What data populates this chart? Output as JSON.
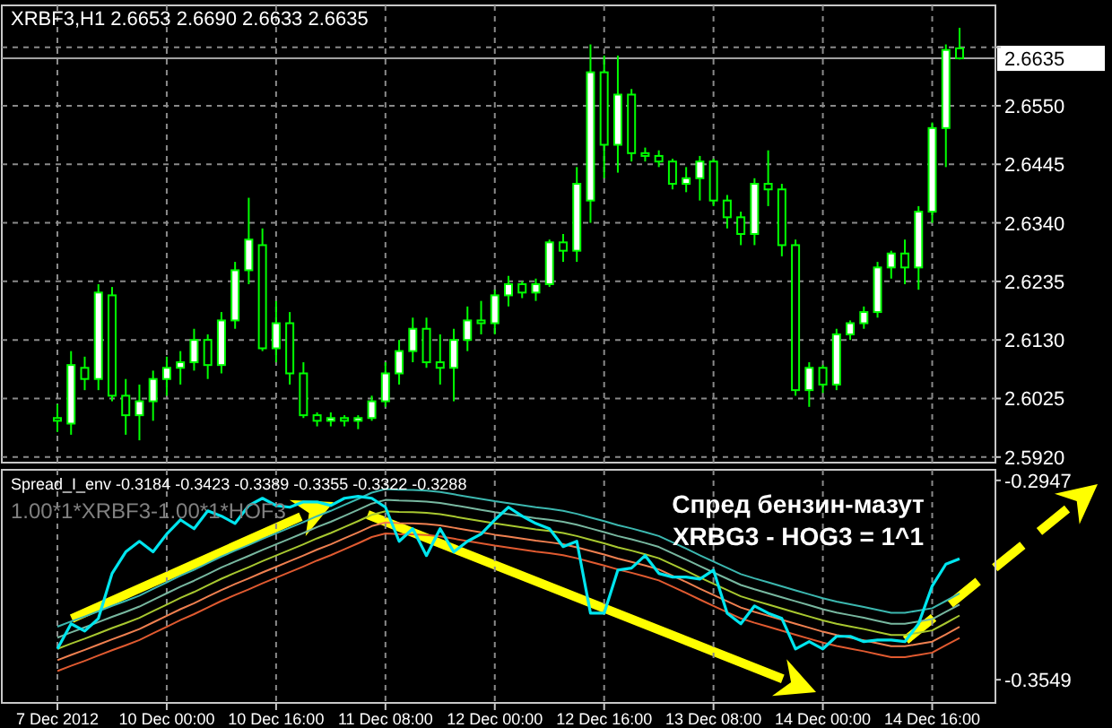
{
  "chart_data": [
    {
      "type": "candlestick",
      "title": "XRBF3,H1 2.6653 2.6690 2.6633 2.6635",
      "color": "#00ff00",
      "categories": [
        null,
        null,
        null,
        null,
        null,
        null,
        null,
        null,
        null,
        null,
        null,
        null,
        null,
        null,
        null,
        null,
        null,
        null,
        null,
        null,
        null,
        null,
        null,
        null,
        null,
        null,
        null,
        null,
        null,
        null,
        null,
        null,
        null,
        null,
        null,
        null,
        null,
        null,
        null,
        null,
        null,
        null,
        null,
        null,
        null,
        null,
        null,
        null,
        null,
        null,
        null,
        null,
        null,
        null,
        null,
        null,
        null,
        null,
        null,
        null,
        null,
        null,
        null,
        null,
        null,
        null,
        null
      ],
      "ohlc": [
        [
          2.599,
          2.6015,
          2.5965,
          2.5985
        ],
        [
          2.598,
          2.611,
          2.596,
          2.6085
        ],
        [
          2.608,
          2.61,
          2.604,
          2.606
        ],
        [
          2.606,
          2.623,
          2.604,
          2.6215
        ],
        [
          2.621,
          2.6225,
          2.602,
          2.603
        ],
        [
          2.603,
          2.606,
          2.596,
          2.5995
        ],
        [
          2.5995,
          2.605,
          2.595,
          2.602
        ],
        [
          2.602,
          2.6075,
          2.5985,
          2.606
        ],
        [
          2.606,
          2.61,
          2.603,
          2.608
        ],
        [
          2.608,
          2.611,
          2.605,
          2.609
        ],
        [
          2.609,
          2.615,
          2.6075,
          2.613
        ],
        [
          2.613,
          2.614,
          2.606,
          2.6085
        ],
        [
          2.6085,
          2.618,
          2.607,
          2.6165
        ],
        [
          2.6165,
          2.627,
          2.615,
          2.6255
        ],
        [
          2.6255,
          2.6385,
          2.623,
          2.631
        ],
        [
          2.63,
          2.633,
          2.611,
          2.6115
        ],
        [
          2.6115,
          2.62,
          2.609,
          2.616
        ],
        [
          2.616,
          2.618,
          2.605,
          2.607
        ],
        [
          2.607,
          2.609,
          2.599,
          2.5995
        ],
        [
          2.5995,
          2.6,
          2.5975,
          2.5985
        ],
        [
          2.5985,
          2.6,
          2.5975,
          2.599
        ],
        [
          2.599,
          2.5995,
          2.5975,
          2.5985
        ],
        [
          2.5985,
          2.5995,
          2.597,
          2.599
        ],
        [
          2.599,
          2.603,
          2.5985,
          2.602
        ],
        [
          2.602,
          2.609,
          2.601,
          2.607
        ],
        [
          2.607,
          2.613,
          2.605,
          2.611
        ],
        [
          2.611,
          2.617,
          2.609,
          2.615
        ],
        [
          2.615,
          2.617,
          2.608,
          2.609
        ],
        [
          2.609,
          2.614,
          2.605,
          2.608
        ],
        [
          2.608,
          2.615,
          2.602,
          2.613
        ],
        [
          2.613,
          2.619,
          2.611,
          2.6165
        ],
        [
          2.6165,
          2.62,
          2.614,
          2.616
        ],
        [
          2.616,
          2.622,
          2.614,
          2.621
        ],
        [
          2.621,
          2.6245,
          2.619,
          2.623
        ],
        [
          2.623,
          2.6235,
          2.6205,
          2.6215
        ],
        [
          2.6215,
          2.624,
          2.62,
          2.623
        ],
        [
          2.623,
          2.631,
          2.6225,
          2.6305
        ],
        [
          2.6305,
          2.632,
          2.627,
          2.629
        ],
        [
          2.629,
          2.644,
          2.627,
          2.641
        ],
        [
          2.638,
          2.666,
          2.634,
          2.661
        ],
        [
          2.661,
          2.664,
          2.642,
          2.648
        ],
        [
          2.648,
          2.664,
          2.643,
          2.657
        ],
        [
          2.657,
          2.658,
          2.645,
          2.6465
        ],
        [
          2.6465,
          2.6475,
          2.645,
          2.646
        ],
        [
          2.646,
          2.647,
          2.644,
          2.645
        ],
        [
          2.645,
          2.6455,
          2.64,
          2.641
        ],
        [
          2.641,
          2.644,
          2.6395,
          2.642
        ],
        [
          2.642,
          2.646,
          2.638,
          2.645
        ],
        [
          2.645,
          2.6455,
          2.637,
          2.638
        ],
        [
          2.638,
          2.639,
          2.633,
          2.635
        ],
        [
          2.635,
          2.636,
          2.63,
          2.632
        ],
        [
          2.632,
          2.642,
          2.63,
          2.641
        ],
        [
          2.641,
          2.647,
          2.637,
          2.64
        ],
        [
          2.64,
          2.641,
          2.628,
          2.63
        ],
        [
          2.63,
          2.631,
          2.603,
          2.604
        ],
        [
          2.604,
          2.609,
          2.601,
          2.608
        ],
        [
          2.608,
          2.6085,
          2.6035,
          2.605
        ],
        [
          2.605,
          2.615,
          2.604,
          2.614
        ],
        [
          2.614,
          2.6165,
          2.613,
          2.616
        ],
        [
          2.616,
          2.619,
          2.615,
          2.618
        ],
        [
          2.618,
          2.627,
          2.617,
          2.626
        ],
        [
          2.626,
          2.629,
          2.624,
          2.6285
        ],
        [
          2.6285,
          2.631,
          2.623,
          2.626
        ],
        [
          2.626,
          2.637,
          2.622,
          2.636
        ],
        [
          2.636,
          2.652,
          2.634,
          2.651
        ],
        [
          2.651,
          2.666,
          2.644,
          2.665
        ],
        [
          2.6653,
          2.669,
          2.6633,
          2.6635
        ]
      ],
      "ylim": [
        2.591,
        2.673
      ],
      "yticks": [
        {
          "value": 2.592,
          "label": "2.5920"
        },
        {
          "value": 2.6025,
          "label": "2.6025"
        },
        {
          "value": 2.613,
          "label": "2.6130"
        },
        {
          "value": 2.6235,
          "label": "2.6235"
        },
        {
          "value": 2.634,
          "label": "2.6340"
        },
        {
          "value": 2.6445,
          "label": "2.6445"
        },
        {
          "value": 2.655,
          "label": "2.6550"
        },
        {
          "value": 2.6655,
          "label": null
        }
      ],
      "grid": true,
      "tick_labels": "y",
      "ref_lines": [
        {
          "axis": "y",
          "value": 2.6635,
          "label": "2.6635",
          "color": "#a0a0a0"
        }
      ]
    },
    {
      "type": "line",
      "title": "Spread_I_env -0.3184 -0.3423 -0.3389 -0.3355 -0.3322 -0.3288",
      "categories": [
        "7 Dec 2012",
        null,
        null,
        null,
        null,
        null,
        null,
        null,
        "10 Dec 00:00",
        null,
        null,
        null,
        null,
        null,
        null,
        null,
        "10 Dec 16:00",
        null,
        null,
        null,
        null,
        null,
        null,
        null,
        "11 Dec 08:00",
        null,
        null,
        null,
        null,
        null,
        null,
        null,
        "12 Dec 00:00",
        null,
        null,
        null,
        null,
        null,
        null,
        null,
        "12 Dec 16:00",
        null,
        null,
        null,
        null,
        null,
        null,
        null,
        "13 Dec 08:00",
        null,
        null,
        null,
        null,
        null,
        null,
        null,
        "14 Dec 00:00",
        null,
        null,
        null,
        null,
        null,
        null,
        null,
        "14 Dec 16:00",
        null,
        null
      ],
      "series": [
        {
          "color": "#3cb8b0",
          "values": [
            -0.3389,
            -0.3373,
            -0.3358,
            -0.3342,
            -0.3326,
            -0.3311,
            -0.3295,
            -0.3275,
            -0.3255,
            -0.3235,
            -0.3217,
            -0.3197,
            -0.3177,
            -0.3159,
            -0.3142,
            -0.3124,
            -0.3107,
            -0.309,
            -0.3073,
            -0.3055,
            -0.3039,
            -0.3021,
            -0.3003,
            -0.2984,
            -0.2973,
            -0.2975,
            -0.2976,
            -0.2978,
            -0.2982,
            -0.2989,
            -0.2996,
            -0.3003,
            -0.301,
            -0.3016,
            -0.3022,
            -0.3028,
            -0.3033,
            -0.3039,
            -0.3048,
            -0.3059,
            -0.307,
            -0.3082,
            -0.3092,
            -0.3103,
            -0.3115,
            -0.3134,
            -0.3153,
            -0.3173,
            -0.3192,
            -0.3211,
            -0.323,
            -0.3243,
            -0.3255,
            -0.3267,
            -0.3279,
            -0.3291,
            -0.3303,
            -0.3313,
            -0.3321,
            -0.3329,
            -0.3338,
            -0.3347,
            -0.3347,
            -0.334,
            -0.3333,
            -0.3311,
            -0.3288
          ]
        },
        {
          "color": "#78b8a0",
          "values": [
            -0.3422,
            -0.3406,
            -0.3391,
            -0.3375,
            -0.3359,
            -0.3344,
            -0.3328,
            -0.3308,
            -0.3288,
            -0.3268,
            -0.325,
            -0.323,
            -0.321,
            -0.3192,
            -0.3175,
            -0.3157,
            -0.314,
            -0.3123,
            -0.3106,
            -0.3088,
            -0.3072,
            -0.3054,
            -0.3036,
            -0.3017,
            -0.3006,
            -0.3008,
            -0.3009,
            -0.3011,
            -0.3015,
            -0.3022,
            -0.3029,
            -0.3036,
            -0.3043,
            -0.3049,
            -0.3055,
            -0.3061,
            -0.3066,
            -0.3072,
            -0.3081,
            -0.3092,
            -0.3103,
            -0.3115,
            -0.3125,
            -0.3136,
            -0.3148,
            -0.3167,
            -0.3186,
            -0.3206,
            -0.3225,
            -0.3244,
            -0.3263,
            -0.3276,
            -0.3288,
            -0.33,
            -0.3312,
            -0.3324,
            -0.3336,
            -0.3346,
            -0.3354,
            -0.3362,
            -0.3371,
            -0.338,
            -0.338,
            -0.3373,
            -0.3366,
            -0.3344,
            -0.3322
          ]
        },
        {
          "color": "#a8c830",
          "values": [
            -0.3456,
            -0.344,
            -0.3425,
            -0.3409,
            -0.3393,
            -0.3378,
            -0.3362,
            -0.3342,
            -0.3322,
            -0.3302,
            -0.3284,
            -0.3264,
            -0.3244,
            -0.3226,
            -0.3209,
            -0.3191,
            -0.3174,
            -0.3157,
            -0.314,
            -0.3122,
            -0.3106,
            -0.3088,
            -0.307,
            -0.3051,
            -0.304,
            -0.3042,
            -0.3043,
            -0.3045,
            -0.3049,
            -0.3056,
            -0.3063,
            -0.307,
            -0.3077,
            -0.3083,
            -0.3089,
            -0.3095,
            -0.31,
            -0.3106,
            -0.3115,
            -0.3126,
            -0.3137,
            -0.3149,
            -0.3159,
            -0.317,
            -0.3182,
            -0.3201,
            -0.322,
            -0.324,
            -0.3259,
            -0.3278,
            -0.3297,
            -0.331,
            -0.3322,
            -0.3334,
            -0.3346,
            -0.3358,
            -0.337,
            -0.338,
            -0.3388,
            -0.3396,
            -0.3405,
            -0.3414,
            -0.3414,
            -0.3407,
            -0.34,
            -0.3378,
            -0.3355
          ]
        },
        {
          "color": "#f08050",
          "values": [
            -0.349,
            -0.3474,
            -0.3459,
            -0.3443,
            -0.3427,
            -0.3412,
            -0.3396,
            -0.3376,
            -0.3356,
            -0.3336,
            -0.3318,
            -0.3298,
            -0.3278,
            -0.326,
            -0.3243,
            -0.3225,
            -0.3208,
            -0.3191,
            -0.3174,
            -0.3156,
            -0.314,
            -0.3122,
            -0.3104,
            -0.3085,
            -0.3074,
            -0.3076,
            -0.3077,
            -0.3079,
            -0.3083,
            -0.309,
            -0.3097,
            -0.3104,
            -0.3111,
            -0.3117,
            -0.3123,
            -0.3129,
            -0.3134,
            -0.314,
            -0.3149,
            -0.316,
            -0.3171,
            -0.3183,
            -0.3193,
            -0.3204,
            -0.3216,
            -0.3235,
            -0.3254,
            -0.3274,
            -0.3293,
            -0.3312,
            -0.3331,
            -0.3344,
            -0.3356,
            -0.3368,
            -0.338,
            -0.3392,
            -0.3404,
            -0.3414,
            -0.3422,
            -0.343,
            -0.3439,
            -0.3448,
            -0.3448,
            -0.3441,
            -0.3434,
            -0.3412,
            -0.3389
          ]
        },
        {
          "color": "#e05a30",
          "values": [
            -0.3523,
            -0.3507,
            -0.3492,
            -0.3476,
            -0.346,
            -0.3445,
            -0.3429,
            -0.3409,
            -0.3389,
            -0.3369,
            -0.3351,
            -0.3331,
            -0.3311,
            -0.3293,
            -0.3276,
            -0.3258,
            -0.3241,
            -0.3224,
            -0.3207,
            -0.3189,
            -0.3173,
            -0.3155,
            -0.3137,
            -0.3118,
            -0.3107,
            -0.3109,
            -0.311,
            -0.3112,
            -0.3116,
            -0.3123,
            -0.313,
            -0.3137,
            -0.3144,
            -0.315,
            -0.3156,
            -0.3162,
            -0.3167,
            -0.3173,
            -0.3182,
            -0.3193,
            -0.3204,
            -0.3216,
            -0.3226,
            -0.3237,
            -0.3249,
            -0.3268,
            -0.3287,
            -0.3307,
            -0.3326,
            -0.3345,
            -0.3364,
            -0.3377,
            -0.3389,
            -0.3401,
            -0.3413,
            -0.3425,
            -0.3437,
            -0.3447,
            -0.3455,
            -0.3463,
            -0.3472,
            -0.3481,
            -0.3481,
            -0.3474,
            -0.3467,
            -0.3445,
            -0.3423
          ]
        },
        {
          "color": "#00e5ee",
          "values": [
            -0.3456,
            -0.338,
            -0.3402,
            -0.3364,
            -0.3228,
            -0.3163,
            -0.3131,
            -0.3163,
            -0.3109,
            -0.3066,
            -0.3093,
            -0.3039,
            -0.3055,
            -0.3077,
            -0.3023,
            -0.3001,
            -0.3023,
            -0.3028,
            -0.3012,
            -0.3012,
            -0.3023,
            -0.3001,
            -0.2995,
            -0.3001,
            -0.3028,
            -0.3131,
            -0.3093,
            -0.3174,
            -0.3093,
            -0.3163,
            -0.3131,
            -0.3109,
            -0.3066,
            -0.3028,
            -0.3055,
            -0.3077,
            -0.3093,
            -0.3147,
            -0.3131,
            -0.3348,
            -0.3348,
            -0.3218,
            -0.3212,
            -0.3174,
            -0.3228,
            -0.3239,
            -0.3239,
            -0.3245,
            -0.3218,
            -0.3348,
            -0.338,
            -0.3326,
            -0.3348,
            -0.3364,
            -0.3456,
            -0.3434,
            -0.3456,
            -0.3418,
            -0.3418,
            -0.3434,
            -0.3429,
            -0.3429,
            -0.3434,
            -0.338,
            -0.3266,
            -0.32,
            -0.3184
          ]
        }
      ],
      "ylim": [
        -0.3619,
        -0.2915
      ],
      "yticks": [
        {
          "value": -0.2947,
          "label": "-0.2947"
        },
        {
          "value": -0.3549,
          "label": "-0.3549"
        }
      ],
      "grid": "x",
      "annotations": [
        "1.00*1*XRBF3-1.00*1*HOF3",
        "Спред бензин-мазут",
        "XRBG3 - HOG3 = 1^1"
      ]
    }
  ]
}
